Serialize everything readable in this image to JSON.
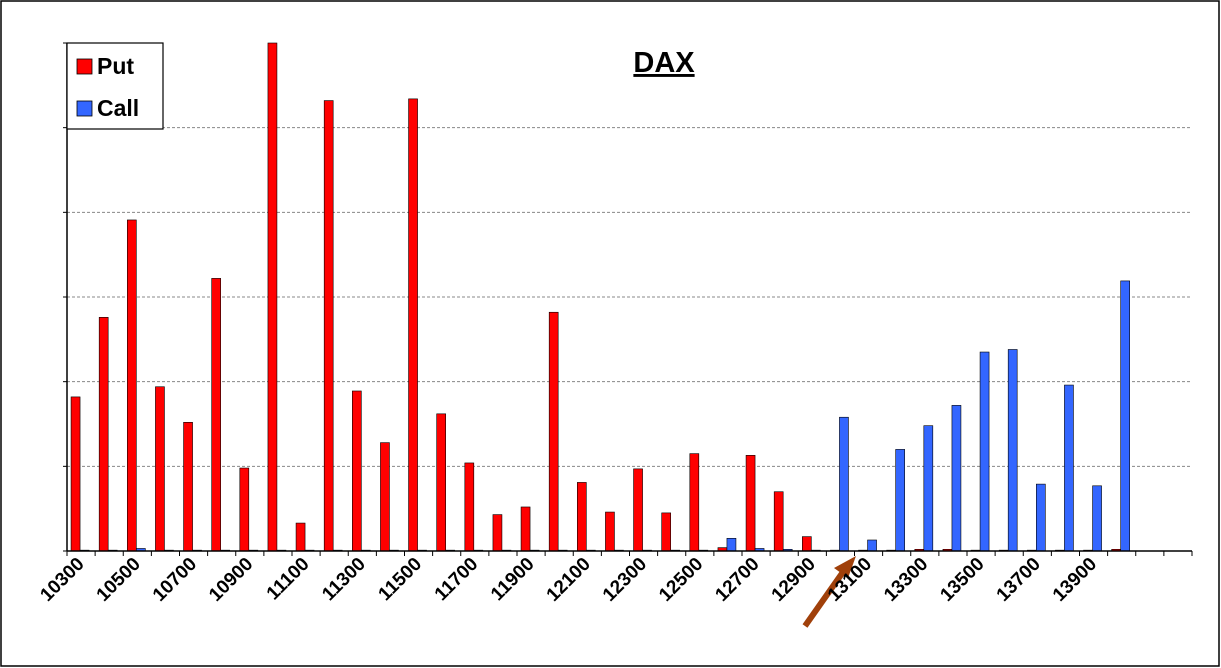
{
  "chart_data": {
    "type": "bar",
    "title": "DAX",
    "categories": [
      "10300",
      null,
      "10500",
      null,
      "10700",
      null,
      "10900",
      null,
      "11100",
      null,
      "11300",
      null,
      "11500",
      null,
      "11700",
      null,
      "11900",
      null,
      "12100",
      null,
      "12300",
      null,
      "12500",
      null,
      "12700",
      null,
      "12900",
      null,
      "13100",
      null,
      "13300",
      null,
      "13500",
      null,
      "13700",
      null,
      "13900",
      null,
      null,
      null
    ],
    "series": [
      {
        "name": "Put",
        "color": "#ff0000",
        "values": [
          1.82,
          2.76,
          3.91,
          1.94,
          1.52,
          3.22,
          0.98,
          6.0,
          0.33,
          5.32,
          1.89,
          1.28,
          5.34,
          1.62,
          1.04,
          0.43,
          0.52,
          2.82,
          0.81,
          0.46,
          0.97,
          0.45,
          1.15,
          0.04,
          1.13,
          0.7,
          0.17,
          0.01,
          0.01,
          0.01,
          0.02,
          0.02,
          0.01,
          0.01,
          0.01,
          0.01,
          0.01,
          0.02,
          0,
          0
        ]
      },
      {
        "name": "Call",
        "color": "#3366ff",
        "values": [
          0.01,
          0.01,
          0.03,
          0.01,
          0.01,
          0.01,
          0.01,
          0.01,
          0.01,
          0.01,
          0.01,
          0.01,
          0.01,
          0.01,
          0.01,
          0.01,
          0.01,
          0.01,
          0.01,
          0.01,
          0.01,
          0.01,
          0.01,
          0.15,
          0.03,
          0.02,
          0.01,
          1.58,
          0.13,
          1.2,
          1.48,
          1.72,
          2.35,
          2.38,
          0.79,
          1.96,
          0.77,
          3.19,
          0,
          0
        ]
      }
    ],
    "ylim": [
      0,
      6
    ],
    "yticks": [
      0,
      1,
      2,
      3,
      4,
      5,
      6
    ],
    "grid": true,
    "legend": "top-left"
  }
}
